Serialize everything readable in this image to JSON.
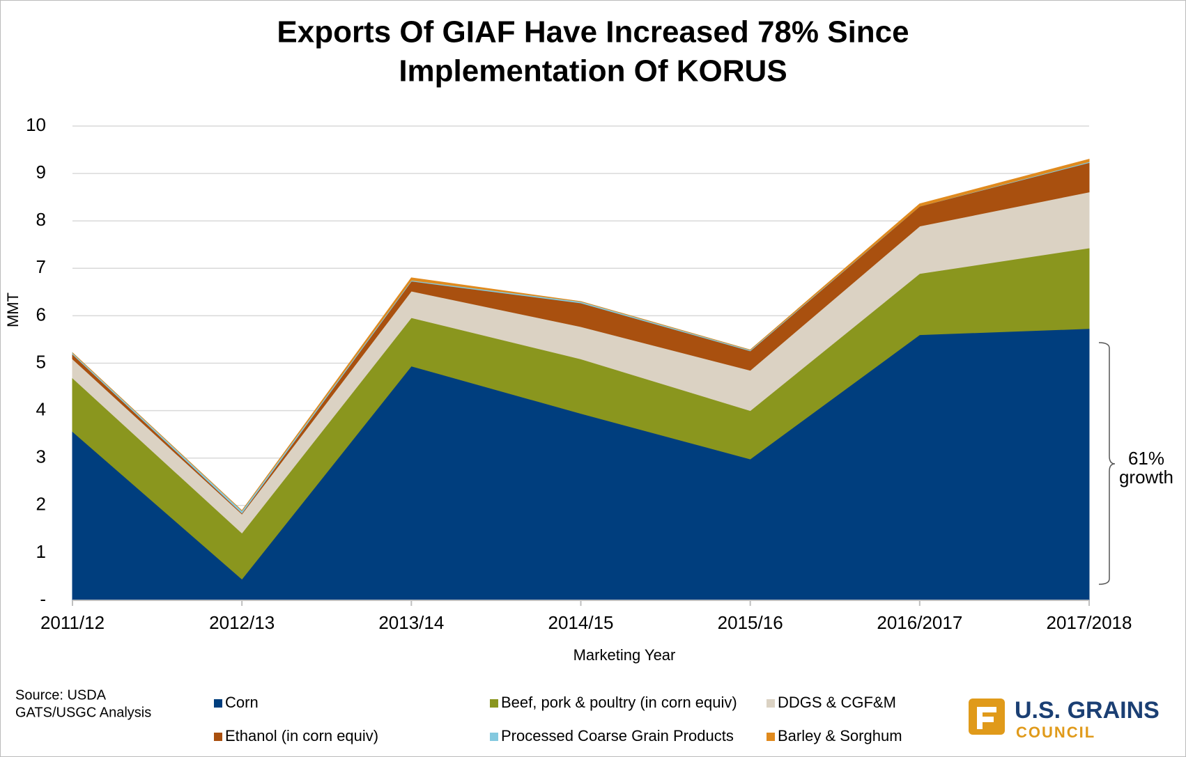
{
  "chart_data": {
    "type": "stacked_area",
    "title": [
      "Exports Of GIAF Have Increased 78% Since",
      "Implementation Of KORUS"
    ],
    "x_label": "Marketing Year",
    "y_label": "MMT",
    "categories": [
      "2011/12",
      "2012/13",
      "2013/14",
      "2014/15",
      "2015/16",
      "2016/2017",
      "2017/2018"
    ],
    "series": [
      {
        "name": "Corn",
        "color": "#003e7e",
        "values": [
          3.56,
          0.45,
          4.94,
          3.94,
          2.98,
          5.6,
          5.73
        ]
      },
      {
        "name": "Beef, pork & poultry (in corn equiv)",
        "color": "#8a961e",
        "values": [
          1.13,
          0.97,
          1.02,
          1.15,
          1.02,
          1.29,
          1.7
        ]
      },
      {
        "name": "DDGS & CGF&M",
        "color": "#dbd2c3",
        "values": [
          0.4,
          0.4,
          0.56,
          0.68,
          0.85,
          1.0,
          1.18
        ]
      },
      {
        "name": "Ethanol (in corn equiv)",
        "color": "#a9500f",
        "values": [
          0.1,
          0.02,
          0.21,
          0.5,
          0.41,
          0.42,
          0.62
        ]
      },
      {
        "name": "Processed Coarse Grain Products",
        "color": "#84c9df",
        "values": [
          0.03,
          0.05,
          0.02,
          0.03,
          0.02,
          0.0,
          0.02
        ]
      },
      {
        "name": "Barley & Sorghum",
        "color": "#e08a1e",
        "values": [
          0.0,
          0.0,
          0.05,
          0.0,
          0.0,
          0.05,
          0.05
        ]
      }
    ],
    "ylim": [
      0,
      10
    ],
    "yticks": [
      {
        "value": 0,
        "label": "-"
      },
      1,
      2,
      3,
      4,
      5,
      6,
      7,
      8,
      9,
      10
    ],
    "grid": true,
    "annotation": [
      "61%",
      "growth"
    ],
    "source": [
      "Source: USDA",
      "GATS/USGC Analysis"
    ],
    "logo": [
      "U.S. GRAINS",
      "COUNCIL"
    ]
  }
}
